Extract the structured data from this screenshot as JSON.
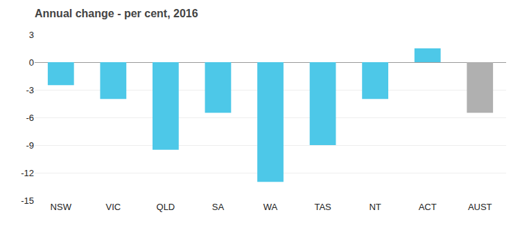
{
  "chart_data": {
    "type": "bar",
    "title": "Annual change - per cent, 2016",
    "categories": [
      "NSW",
      "VIC",
      "QLD",
      "SA",
      "WA",
      "TAS",
      "NT",
      "ACT",
      "AUST"
    ],
    "values": [
      -2.5,
      -4.0,
      -9.5,
      -5.5,
      -13.0,
      -9.0,
      -4.0,
      1.5,
      -5.5
    ],
    "colors": [
      "#4dc8e8",
      "#4dc8e8",
      "#4dc8e8",
      "#4dc8e8",
      "#4dc8e8",
      "#4dc8e8",
      "#4dc8e8",
      "#4dc8e8",
      "#b0b0b0"
    ],
    "ylim": [
      -15,
      3
    ],
    "yticks": [
      3,
      0,
      -3,
      -6,
      -9,
      -12,
      -15
    ],
    "grid": true
  }
}
